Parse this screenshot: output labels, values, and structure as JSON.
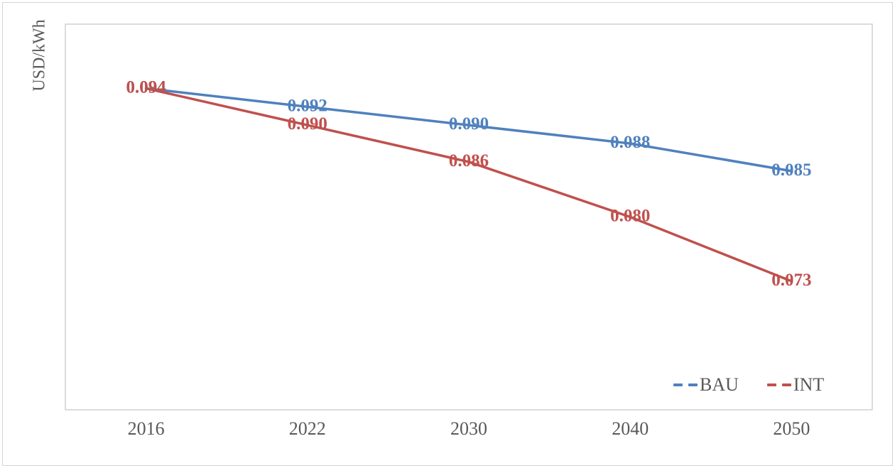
{
  "chart_data": {
    "type": "line",
    "title": "",
    "xlabel": "",
    "ylabel": "USD/kWh",
    "categories": [
      "2016",
      "2022",
      "2030",
      "2040",
      "2050"
    ],
    "series": [
      {
        "name": "BAU",
        "color": "#4F81BD",
        "values": [
          0.094,
          0.092,
          0.09,
          0.088,
          0.085
        ]
      },
      {
        "name": "INT",
        "color": "#C0504D",
        "values": [
          0.094,
          0.09,
          0.086,
          0.08,
          0.073
        ]
      }
    ],
    "ylim": [
      0.059,
      0.101
    ],
    "grid": false,
    "y_tick_labels_visible": false,
    "legend_position": "inside-bottom-right",
    "legend_marker": "double-dash",
    "data_label_position": "center",
    "data_label_format": "0.000",
    "data_labels_bold": true
  },
  "colors": {
    "background": "#FFFFFF",
    "axis_text": "#595959",
    "plot_border": "#C9C9C9",
    "chart_border": "#D4D4D4",
    "bau_series": "#4F81BD",
    "int_series": "#C0504D"
  }
}
